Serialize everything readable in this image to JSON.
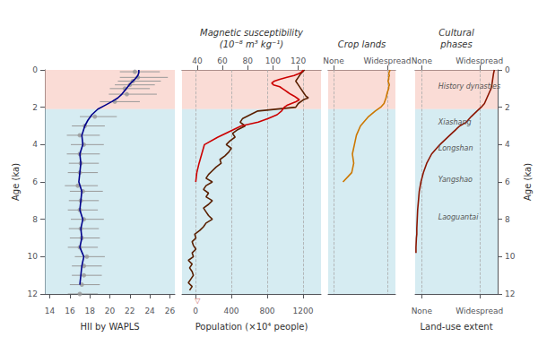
{
  "chart_data": [
    {
      "type": "line",
      "xlabel": "HII by WAPLS",
      "ylabel": "Age (ka)",
      "xlim": [
        13.5,
        26.5
      ],
      "xticks": [
        14,
        16,
        18,
        20,
        22,
        24,
        26
      ],
      "ylim": [
        12,
        0
      ],
      "yticks": [
        0,
        2,
        4,
        6,
        8,
        10,
        12
      ],
      "grid": false,
      "bands": [
        {
          "from": 0,
          "to": 2.1,
          "color": "#f5c0b5"
        },
        {
          "from": 2.1,
          "to": 12.0,
          "color": "#b5dce8"
        }
      ],
      "series": [
        {
          "type": "scatter",
          "color": "#999999",
          "marker": "circle",
          "x": [
            22.5,
            22.8,
            22.3,
            22.0,
            21.5,
            21.7,
            20.5,
            18.5,
            17.5,
            17.0,
            17.4,
            17.0,
            17.1,
            17.0,
            16.8,
            17.3,
            17.1,
            17.0,
            17.4,
            17.1,
            17.2,
            17.0,
            17.7,
            17.4,
            17.4,
            17.2,
            17.0
          ],
          "y": [
            0.1,
            0.4,
            0.6,
            0.8,
            1.0,
            1.3,
            1.7,
            2.5,
            3.0,
            3.5,
            4.0,
            4.5,
            5.0,
            5.5,
            6.2,
            6.5,
            7.0,
            7.5,
            8.0,
            8.5,
            9.0,
            9.5,
            10.0,
            10.5,
            11.0,
            11.5,
            12.0
          ],
          "xerr_lo": [
            1.5,
            1.8,
            1.5,
            1.5,
            1.5,
            1.8,
            1.5,
            1.5,
            1.3,
            1.3,
            1.3,
            1.3,
            1.2,
            1.2,
            1.3,
            1.3,
            1.2,
            1.2,
            1.3,
            1.2,
            1.2,
            1.2,
            1.2,
            1.2,
            1.2,
            1.2,
            1.2
          ],
          "xerr_hi": [
            2.5,
            3.0,
            2.8,
            2.5,
            2.5,
            3.0,
            2.5,
            2.2,
            2.0,
            2.0,
            2.0,
            2.0,
            1.8,
            1.8,
            2.0,
            2.0,
            1.8,
            1.8,
            2.0,
            1.8,
            1.8,
            1.8,
            1.8,
            1.8,
            1.8,
            1.8,
            1.8
          ]
        },
        {
          "type": "line",
          "color": "#00008b",
          "x": [
            22.9,
            22.9,
            22.8,
            22.5,
            22.1,
            21.8,
            21.5,
            21.2,
            20.8,
            20.2,
            19.5,
            18.8,
            18.2,
            17.8,
            17.5,
            17.2,
            17.3,
            17.0,
            17.1,
            17.0,
            16.9,
            17.2,
            17.1,
            17.0,
            17.3,
            17.1,
            17.2,
            17.0,
            17.4,
            17.2,
            17.1,
            17.0
          ],
          "y": [
            0.0,
            0.15,
            0.3,
            0.5,
            0.7,
            0.9,
            1.1,
            1.3,
            1.5,
            1.7,
            1.9,
            2.1,
            2.4,
            2.7,
            3.0,
            3.5,
            4.0,
            4.5,
            5.0,
            5.5,
            6.0,
            6.5,
            7.0,
            7.5,
            8.0,
            8.5,
            9.0,
            9.5,
            10.0,
            10.5,
            11.0,
            11.5
          ]
        }
      ]
    },
    {
      "type": "line",
      "xlabel": "Population (×10⁴ people)",
      "xlim": [
        -150,
        1400
      ],
      "xticks": [
        0,
        400,
        800,
        1200
      ],
      "x2label": "Magnetic susceptibility\n(10⁻⁸ m³ kg⁻¹)",
      "x2lim": [
        28,
        138
      ],
      "x2ticks": [
        40,
        60,
        80,
        100,
        120
      ],
      "ylim": [
        12,
        0
      ],
      "tick_labels": "x",
      "grid": true,
      "bands": [
        {
          "from": 0,
          "to": 2.1,
          "color": "#f5c0b5"
        },
        {
          "from": 2.1,
          "to": 12.0,
          "color": "#b5dce8"
        }
      ],
      "series": [
        {
          "type": "line",
          "axis": "x2",
          "color": "#5a2000",
          "x": [
            125,
            122,
            120,
            118,
            120,
            122,
            124,
            126,
            128,
            124,
            120,
            118,
            88,
            82,
            76,
            74,
            78,
            72,
            68,
            70,
            66,
            63,
            67,
            65,
            62,
            58,
            59,
            55,
            52,
            49,
            47,
            52,
            47,
            45,
            49,
            47,
            52,
            49,
            45,
            47,
            49,
            52,
            47,
            45,
            42,
            38,
            39,
            36,
            37,
            39,
            36,
            37,
            33,
            36,
            34,
            36,
            37,
            35,
            33,
            36,
            34
          ],
          "y": [
            0.0,
            0.2,
            0.4,
            0.6,
            0.8,
            1.0,
            1.2,
            1.4,
            1.5,
            1.6,
            1.8,
            2.0,
            2.2,
            2.4,
            2.6,
            2.8,
            3.0,
            3.2,
            3.4,
            3.6,
            3.8,
            4.0,
            4.2,
            4.4,
            4.6,
            4.8,
            5.0,
            5.2,
            5.4,
            5.6,
            5.8,
            6.0,
            6.2,
            6.4,
            6.6,
            6.8,
            7.0,
            7.2,
            7.4,
            7.6,
            7.8,
            8.0,
            8.2,
            8.4,
            8.6,
            8.8,
            9.0,
            9.2,
            9.4,
            9.6,
            9.8,
            10.0,
            10.2,
            10.4,
            10.6,
            10.8,
            11.0,
            11.2,
            11.4,
            11.6,
            11.8
          ]
        },
        {
          "type": "line",
          "color": "#cc0000",
          "x": [
            1200,
            1195,
            1185,
            1170,
            1150,
            1100,
            1020,
            940,
            880,
            850,
            870,
            940,
            970,
            1000,
            1030,
            1060,
            1100,
            1130,
            1160,
            1120,
            1070,
            1020,
            990,
            960,
            910,
            810,
            700,
            510,
            380,
            250,
            100,
            70,
            40,
            15,
            3
          ],
          "y": [
            0.0,
            0.05,
            0.1,
            0.15,
            0.2,
            0.3,
            0.4,
            0.5,
            0.6,
            0.7,
            0.8,
            0.9,
            1.0,
            1.1,
            1.2,
            1.3,
            1.4,
            1.5,
            1.6,
            1.7,
            1.8,
            1.9,
            2.0,
            2.2,
            2.4,
            2.6,
            2.8,
            3.0,
            3.3,
            3.6,
            4.0,
            4.5,
            5.0,
            5.5,
            6.0
          ]
        }
      ],
      "annotations": [
        {
          "text": "▽",
          "x": 24,
          "y": 12.15,
          "color": "#cc6666"
        }
      ]
    },
    {
      "type": "line",
      "x2label": "Crop lands",
      "x2lim": [
        0,
        1
      ],
      "x2ticks": [
        {
          "value": 0.08,
          "label": "None"
        },
        {
          "value": 0.88,
          "label": "Widespread"
        }
      ],
      "xlim": [
        0,
        1
      ],
      "xticks": [],
      "ylim": [
        12,
        0
      ],
      "tick_labels": "x",
      "grid": true,
      "bands": [
        {
          "from": 0,
          "to": 2.1,
          "color": "#f5c0b5"
        },
        {
          "from": 2.1,
          "to": 12.0,
          "color": "#b5dce8"
        }
      ],
      "series": [
        {
          "type": "line",
          "color": "#cc7700",
          "x": [
            0.92,
            0.91,
            0.9,
            0.91,
            0.9,
            0.9,
            0.89,
            0.9,
            0.91,
            0.9,
            0.9,
            0.88,
            0.86,
            0.83,
            0.78,
            0.7,
            0.6,
            0.48,
            0.42,
            0.39,
            0.36,
            0.38,
            0.35,
            0.22
          ],
          "y": [
            0.0,
            0.1,
            0.2,
            0.3,
            0.4,
            0.5,
            0.6,
            0.7,
            0.8,
            0.9,
            1.0,
            1.2,
            1.5,
            1.8,
            2.0,
            2.2,
            2.5,
            3.0,
            3.5,
            4.0,
            4.5,
            5.0,
            5.5,
            6.0
          ]
        }
      ]
    },
    {
      "type": "line",
      "xlabel": "Land-use extent",
      "xlim": [
        0,
        1
      ],
      "xticks": [
        {
          "value": 0.08,
          "label": "None"
        },
        {
          "value": 0.78,
          "label": "Widespread"
        }
      ],
      "x2label": "Cultural\nphases",
      "x2lim": [
        0,
        1
      ],
      "x2ticks": [
        {
          "value": 0.08,
          "label": "None"
        },
        {
          "value": 0.78,
          "label": "Widespread"
        }
      ],
      "ylabel": "Age (ka)",
      "ylim": [
        12,
        0
      ],
      "yticks": [
        0,
        2,
        4,
        6,
        8,
        10,
        12
      ],
      "grid": true,
      "bands": [
        {
          "from": 0,
          "to": 2.1,
          "color": "#f5c0b5"
        },
        {
          "from": 2.1,
          "to": 12.0,
          "color": "#b5dce8"
        }
      ],
      "series": [
        {
          "type": "line",
          "color": "#8b1500",
          "x": [
            0.01,
            0.01,
            0.015,
            0.02,
            0.02,
            0.025,
            0.03,
            0.04,
            0.05,
            0.07,
            0.1,
            0.14,
            0.2,
            0.3,
            0.42,
            0.54,
            0.62,
            0.68,
            0.75,
            0.8,
            0.84,
            0.87,
            0.9,
            0.92,
            0.93,
            0.94,
            0.95,
            0.96
          ],
          "y": [
            9.8,
            9.5,
            9.0,
            8.8,
            8.5,
            8.0,
            7.5,
            7.0,
            6.5,
            6.0,
            5.5,
            5.0,
            4.5,
            4.0,
            3.5,
            3.0,
            2.8,
            2.5,
            2.2,
            2.0,
            1.8,
            1.5,
            1.2,
            1.0,
            0.8,
            0.5,
            0.2,
            0.0
          ]
        }
      ],
      "annotations": [
        {
          "text": "History dynasties",
          "x": 0.28,
          "y": 0.9,
          "color": "#555555"
        },
        {
          "text": "Xiashang",
          "x": 0.28,
          "y": 2.8,
          "color": "#555555"
        },
        {
          "text": "Longshan",
          "x": 0.28,
          "y": 4.2,
          "color": "#555555"
        },
        {
          "text": "Yangshao",
          "x": 0.28,
          "y": 5.9,
          "color": "#555555"
        },
        {
          "text": "Laoguantai",
          "x": 0.28,
          "y": 7.9,
          "color": "#555555"
        }
      ]
    }
  ]
}
